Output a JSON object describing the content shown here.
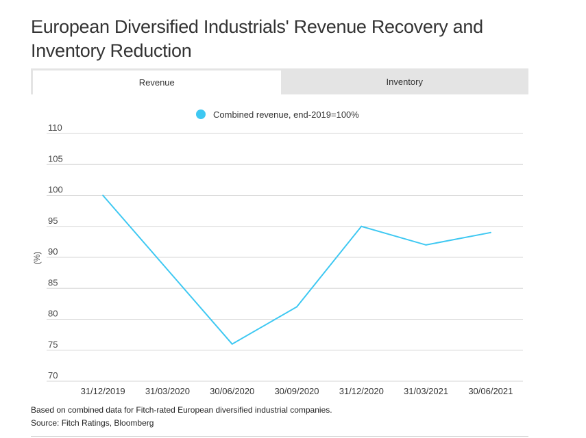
{
  "title": "European Diversified Industrials' Revenue Recovery and Inventory Reduction",
  "tabs": [
    {
      "label": "Revenue",
      "active": true
    },
    {
      "label": "Inventory",
      "active": false
    }
  ],
  "chart_data": {
    "type": "line",
    "title": "",
    "xlabel": "",
    "ylabel": "(%)",
    "ylim": [
      70,
      110
    ],
    "yticks": [
      70,
      75,
      80,
      85,
      90,
      95,
      100,
      105,
      110
    ],
    "categories": [
      "31/12/2019",
      "31/03/2020",
      "30/06/2020",
      "30/09/2020",
      "31/12/2020",
      "31/03/2021",
      "30/06/2021"
    ],
    "series": [
      {
        "name": "Combined revenue, end-2019=100%",
        "values": [
          100,
          88,
          76,
          82,
          95,
          92,
          94
        ],
        "color": "#3ec8f2"
      }
    ],
    "grid": true,
    "legend": "top-center"
  },
  "footnote": "Based on combined data for Fitch-rated European diversified industrial companies.",
  "source": "Source: Fitch Ratings, Bloomberg"
}
